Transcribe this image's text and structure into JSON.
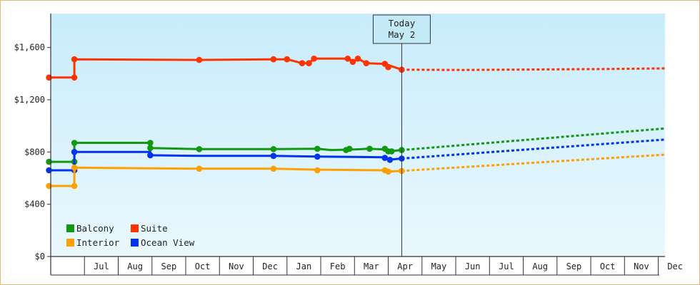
{
  "chart_data": {
    "type": "line",
    "title": "",
    "xlabel": "",
    "ylabel": "",
    "ylim": [
      0,
      1860
    ],
    "y_ticks": [
      {
        "value": 0,
        "label": "$0"
      },
      {
        "value": 400,
        "label": "$400"
      },
      {
        "value": 800,
        "label": "$800"
      },
      {
        "value": 1200,
        "label": "$1,200"
      },
      {
        "value": 1600,
        "label": "$1,600"
      }
    ],
    "x_unit": "month index (0 = start of Jun of first year)",
    "xlim": [
      0,
      18.2
    ],
    "months": [
      {
        "label": "",
        "start": 0
      },
      {
        "label": "Jul",
        "start": 1
      },
      {
        "label": "Aug",
        "start": 2
      },
      {
        "label": "Sep",
        "start": 3
      },
      {
        "label": "Oct",
        "start": 4
      },
      {
        "label": "Nov",
        "start": 5
      },
      {
        "label": "Dec",
        "start": 6
      },
      {
        "label": "Jan",
        "start": 7
      },
      {
        "label": "Feb",
        "start": 8
      },
      {
        "label": "Mar",
        "start": 9
      },
      {
        "label": "Apr",
        "start": 10
      },
      {
        "label": "May",
        "start": 11
      },
      {
        "label": "Jun",
        "start": 12
      },
      {
        "label": "Jul",
        "start": 13
      },
      {
        "label": "Aug",
        "start": 14
      },
      {
        "label": "Sep",
        "start": 15
      },
      {
        "label": "Oct",
        "start": 16
      },
      {
        "label": "Nov",
        "start": 17
      },
      {
        "label": "Dec",
        "start": 18
      }
    ],
    "today": {
      "line1": "Today",
      "line2": "May 2",
      "x": 10.4
    },
    "legend": [
      {
        "name": "Balcony",
        "color": "#119911"
      },
      {
        "name": "Suite",
        "color": "#ff3300"
      },
      {
        "name": "Interior",
        "color": "#ffa000"
      },
      {
        "name": "Ocean View",
        "color": "#0033ee"
      }
    ],
    "series": [
      {
        "name": "Suite",
        "color": "#ff3300",
        "history": [
          [
            -0.05,
            1370
          ],
          [
            0.7,
            1370
          ],
          [
            0.7,
            1510
          ],
          [
            4.4,
            1505
          ],
          [
            6.6,
            1510
          ],
          [
            7.0,
            1510
          ],
          [
            7.45,
            1480
          ],
          [
            7.65,
            1480
          ],
          [
            7.8,
            1515
          ],
          [
            8.8,
            1515
          ],
          [
            8.95,
            1490
          ],
          [
            9.1,
            1515
          ],
          [
            9.35,
            1480
          ],
          [
            9.9,
            1475
          ],
          [
            10.4,
            1430
          ]
        ],
        "markers": [
          [
            -0.05,
            1370
          ],
          [
            0.7,
            1370
          ],
          [
            0.7,
            1510
          ],
          [
            4.4,
            1505
          ],
          [
            6.6,
            1510
          ],
          [
            7.0,
            1510
          ],
          [
            7.45,
            1480
          ],
          [
            7.65,
            1480
          ],
          [
            7.8,
            1515
          ],
          [
            8.8,
            1515
          ],
          [
            8.95,
            1490
          ],
          [
            9.1,
            1515
          ],
          [
            9.35,
            1480
          ],
          [
            9.9,
            1475
          ],
          [
            10.0,
            1450
          ],
          [
            10.4,
            1430
          ]
        ],
        "forecast": [
          [
            10.4,
            1430
          ],
          [
            12.2,
            1428
          ],
          [
            16.3,
            1435
          ],
          [
            18.2,
            1440
          ]
        ]
      },
      {
        "name": "Balcony",
        "color": "#119911",
        "history": [
          [
            -0.05,
            725
          ],
          [
            0.7,
            725
          ],
          [
            0.7,
            870
          ],
          [
            2.95,
            870
          ],
          [
            2.95,
            830
          ],
          [
            4.4,
            822
          ],
          [
            6.6,
            822
          ],
          [
            7.9,
            825
          ],
          [
            8.3,
            815
          ],
          [
            9.0,
            820
          ],
          [
            9.4,
            825
          ],
          [
            9.9,
            820
          ],
          [
            10.0,
            805
          ],
          [
            10.4,
            815
          ]
        ],
        "markers": [
          [
            -0.05,
            725
          ],
          [
            0.7,
            725
          ],
          [
            0.7,
            870
          ],
          [
            2.95,
            870
          ],
          [
            2.95,
            830
          ],
          [
            4.4,
            822
          ],
          [
            6.6,
            822
          ],
          [
            7.9,
            825
          ],
          [
            8.75,
            815
          ],
          [
            8.85,
            825
          ],
          [
            9.45,
            825
          ],
          [
            9.9,
            825
          ],
          [
            10.0,
            805
          ],
          [
            10.1,
            805
          ],
          [
            10.4,
            815
          ]
        ],
        "forecast": [
          [
            10.4,
            815
          ],
          [
            18.2,
            980
          ]
        ]
      },
      {
        "name": "Ocean View",
        "color": "#0033ee",
        "history": [
          [
            -0.05,
            660
          ],
          [
            0.7,
            660
          ],
          [
            0.7,
            800
          ],
          [
            2.95,
            800
          ],
          [
            2.95,
            775
          ],
          [
            4.4,
            770
          ],
          [
            6.6,
            770
          ],
          [
            7.9,
            765
          ],
          [
            9.9,
            760
          ],
          [
            10.0,
            740
          ],
          [
            10.4,
            750
          ]
        ],
        "markers": [
          [
            -0.05,
            660
          ],
          [
            0.7,
            660
          ],
          [
            0.7,
            800
          ],
          [
            2.95,
            775
          ],
          [
            6.6,
            770
          ],
          [
            7.9,
            765
          ],
          [
            9.9,
            755
          ],
          [
            10.05,
            740
          ],
          [
            10.4,
            750
          ]
        ],
        "forecast": [
          [
            10.4,
            750
          ],
          [
            18.2,
            895
          ]
        ]
      },
      {
        "name": "Interior",
        "color": "#ffa000",
        "history": [
          [
            -0.05,
            540
          ],
          [
            0.7,
            540
          ],
          [
            0.7,
            680
          ],
          [
            4.4,
            672
          ],
          [
            6.6,
            672
          ],
          [
            7.9,
            665
          ],
          [
            9.9,
            660
          ],
          [
            10.0,
            650
          ],
          [
            10.4,
            655
          ]
        ],
        "markers": [
          [
            -0.05,
            540
          ],
          [
            0.7,
            540
          ],
          [
            0.7,
            680
          ],
          [
            4.4,
            672
          ],
          [
            6.6,
            672
          ],
          [
            7.9,
            660
          ],
          [
            9.9,
            660
          ],
          [
            10.0,
            650
          ],
          [
            10.4,
            655
          ]
        ],
        "forecast": [
          [
            10.4,
            655
          ],
          [
            18.2,
            780
          ]
        ]
      }
    ]
  }
}
